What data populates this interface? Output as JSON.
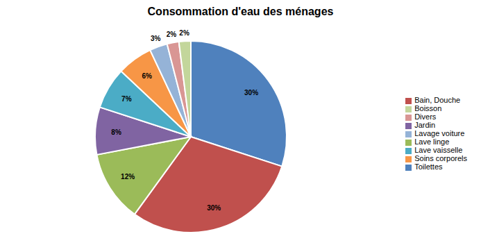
{
  "chart_data": {
    "type": "pie",
    "title": "Consommation d'eau des ménages",
    "categories": [
      "Toilettes",
      "Bain, Douche",
      "Lave linge",
      "Jardin",
      "Lave vaisselle",
      "Soins corporels",
      "Lavage voiture",
      "Divers",
      "Boisson"
    ],
    "values": [
      30,
      30,
      12,
      8,
      7,
      6,
      3,
      2,
      2
    ],
    "value_labels": [
      "30%",
      "30%",
      "12%",
      "8%",
      "7%",
      "6%",
      "3%",
      "2%",
      "2%"
    ],
    "colors": [
      "#4f81bd",
      "#c0504d",
      "#9bbb59",
      "#8064a2",
      "#4bacc6",
      "#f79646",
      "#95b3d7",
      "#d99694",
      "#c3d69b"
    ],
    "data_labels": true,
    "legend": "right"
  }
}
